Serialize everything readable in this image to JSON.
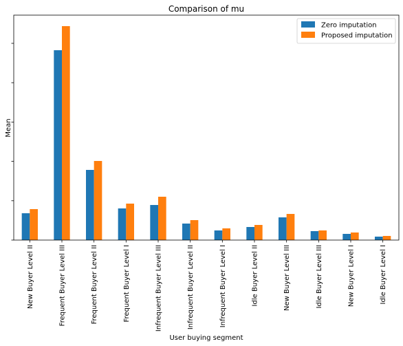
{
  "chart_data": {
    "type": "bar",
    "title": "Comparison of mu",
    "xlabel": "User buying segment",
    "ylabel": "Mean",
    "categories": [
      "New Buyer Level II",
      "Frequent Buyer Level III",
      "Frequent Buyer Level II",
      "Frequent Buyer Level I",
      "Infrequent Buyer Level III",
      "Infrequent Buyer Level II",
      "Infrequent Buyer Level I",
      "Idle Buyer Level II",
      "New Buyer Level III",
      "Idle Buyer Level III",
      "New Buyer Level I",
      "Idle Buyer Level I"
    ],
    "series": [
      {
        "name": "Zero imputation",
        "color": "#1f77b4",
        "values": [
          39,
          276,
          102,
          46,
          51,
          24,
          14,
          19,
          33,
          13,
          9,
          5
        ]
      },
      {
        "name": "Proposed imputation",
        "color": "#ff7f0e",
        "values": [
          45,
          311,
          115,
          53,
          63,
          29,
          17,
          22,
          38,
          14,
          11,
          6
        ]
      }
    ],
    "ylim": [
      0,
      327
    ],
    "y_ticks": [
      0,
      57.2,
      114.4,
      171.6,
      228.8,
      286
    ],
    "y_tick_labels_visible": false,
    "legend_position": "upper right",
    "grid": false
  }
}
